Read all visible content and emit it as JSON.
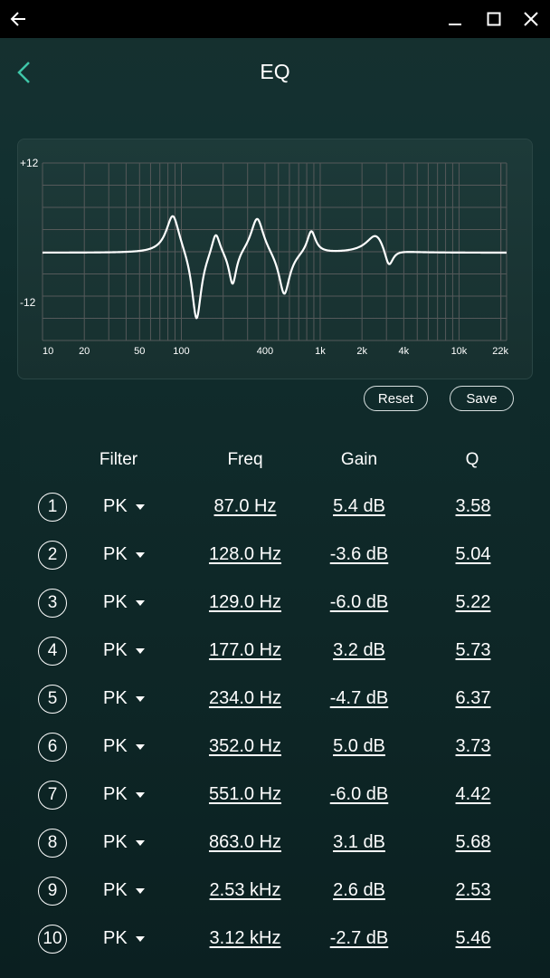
{
  "window": {
    "back_icon": "arrow-left-icon",
    "minimize_icon": "minimize-icon",
    "maximize_icon": "maximize-icon",
    "close_icon": "close-icon"
  },
  "appbar": {
    "title": "EQ",
    "back_icon": "chevron-left-icon",
    "accent_color": "#3ec6a8"
  },
  "graph": {
    "y_top_label": "+12",
    "y_bottom_label": "-12",
    "x_labels": [
      "10",
      "20",
      "50",
      "100",
      "400",
      "1k",
      "2k",
      "4k",
      "10k",
      "22k"
    ],
    "curve_color": "#ffffff",
    "grid_color": "#55595a"
  },
  "actions": {
    "reset_label": "Reset",
    "save_label": "Save"
  },
  "table": {
    "headers": {
      "filter": "Filter",
      "freq": "Freq",
      "gain": "Gain",
      "q": "Q"
    },
    "bands": [
      {
        "index": "1",
        "filter": "PK",
        "freq": "87.0 Hz",
        "gain": "5.4 dB",
        "q": "3.58"
      },
      {
        "index": "2",
        "filter": "PK",
        "freq": "128.0 Hz",
        "gain": "-3.6 dB",
        "q": "5.04"
      },
      {
        "index": "3",
        "filter": "PK",
        "freq": "129.0 Hz",
        "gain": "-6.0 dB",
        "q": "5.22"
      },
      {
        "index": "4",
        "filter": "PK",
        "freq": "177.0 Hz",
        "gain": "3.2 dB",
        "q": "5.73"
      },
      {
        "index": "5",
        "filter": "PK",
        "freq": "234.0 Hz",
        "gain": "-4.7 dB",
        "q": "6.37"
      },
      {
        "index": "6",
        "filter": "PK",
        "freq": "352.0 Hz",
        "gain": "5.0 dB",
        "q": "3.73"
      },
      {
        "index": "7",
        "filter": "PK",
        "freq": "551.0 Hz",
        "gain": "-6.0 dB",
        "q": "4.42"
      },
      {
        "index": "8",
        "filter": "PK",
        "freq": "863.0 Hz",
        "gain": "3.1 dB",
        "q": "5.68"
      },
      {
        "index": "9",
        "filter": "PK",
        "freq": "2.53 kHz",
        "gain": "2.6 dB",
        "q": "2.53"
      },
      {
        "index": "10",
        "filter": "PK",
        "freq": "3.12 kHz",
        "gain": "-2.7 dB",
        "q": "5.46"
      }
    ]
  }
}
